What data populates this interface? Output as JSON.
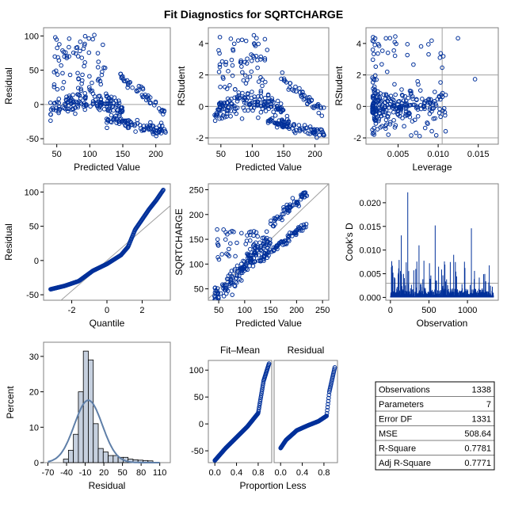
{
  "title": "Fit Diagnostics for SQRTCHARGE",
  "colors": {
    "marker": "#00309a",
    "ref": "#a0a0a0",
    "frame": "#808080",
    "hist_fill": "#c6d0df",
    "curve": "#5f7fa8"
  },
  "chart_data": [
    {
      "type": "scatter",
      "id": "resid_vs_pred",
      "xlabel": "Predicted Value",
      "ylabel": "Residual",
      "xlim": [
        30,
        222
      ],
      "ylim": [
        -58,
        112
      ],
      "xticks": [
        50,
        100,
        150,
        200
      ],
      "yticks": [
        -50,
        0,
        50,
        100
      ],
      "ref_y": 0,
      "clusters": [
        {
          "x": [
            40,
            150
          ],
          "y": [
            -8,
            6
          ],
          "trend": "arch",
          "peak": 6,
          "n": 150
        },
        {
          "x": [
            125,
            215
          ],
          "y": [
            -20,
            -40
          ],
          "trend": "line",
          "n": 90
        },
        {
          "x": [
            45,
            125
          ],
          "y": [
            105,
            20
          ],
          "trend": "scatter",
          "n": 70
        },
        {
          "x": [
            145,
            215
          ],
          "y": [
            42,
            -10
          ],
          "trend": "line",
          "n": 45
        }
      ]
    },
    {
      "type": "scatter",
      "id": "rstudent_vs_pred",
      "xlabel": "Predicted Value",
      "ylabel": "RStudent",
      "xlim": [
        30,
        222
      ],
      "ylim": [
        -2.4,
        5.0
      ],
      "xticks": [
        50,
        100,
        150,
        200
      ],
      "yticks": [
        -2,
        0,
        2,
        4
      ],
      "ref_y": [
        -2,
        0,
        2
      ],
      "clusters": [
        {
          "x": [
            40,
            150
          ],
          "y": [
            -0.3,
            0.3
          ],
          "trend": "arch",
          "peak": 0.3,
          "n": 150
        },
        {
          "x": [
            125,
            215
          ],
          "y": [
            -0.9,
            -1.8
          ],
          "trend": "line",
          "n": 90
        },
        {
          "x": [
            45,
            125
          ],
          "y": [
            4.6,
            0.8
          ],
          "trend": "scatter",
          "n": 70
        },
        {
          "x": [
            145,
            215
          ],
          "y": [
            1.9,
            -0.4
          ],
          "trend": "line",
          "n": 45
        }
      ]
    },
    {
      "type": "scatter",
      "id": "rstudent_vs_leverage",
      "xlabel": "Leverage",
      "ylabel": "RStudent",
      "xlim": [
        0.001,
        0.0175
      ],
      "ylim": [
        -2.4,
        5.0
      ],
      "xticks": [
        0.005,
        0.01,
        0.015
      ],
      "xtick_labels": [
        "0.005",
        "0.010",
        "0.015"
      ],
      "yticks": [
        -2,
        0,
        2,
        4
      ],
      "ref_y": [
        -2,
        0,
        2
      ],
      "ref_x": 0.0105,
      "clusters": [
        {
          "x": [
            0.0018,
            0.011
          ],
          "y": [
            -2.0,
            4.6
          ],
          "n": 300
        }
      ]
    },
    {
      "type": "qq",
      "id": "qq_plot",
      "xlabel": "Quantile",
      "ylabel": "Residual",
      "xlim": [
        -3.6,
        3.6
      ],
      "ylim": [
        -58,
        112
      ],
      "xticks": [
        -2,
        0,
        2
      ],
      "yticks": [
        -50,
        0,
        50,
        100
      ],
      "ref_line": [
        [
          -3.6,
          -80
        ],
        [
          3.6,
          80
        ]
      ],
      "points": [
        [
          -3.2,
          -42
        ],
        [
          -2.4,
          -37
        ],
        [
          -1.6,
          -30
        ],
        [
          -0.8,
          -15
        ],
        [
          0,
          -5
        ],
        [
          0.8,
          8
        ],
        [
          1.2,
          20
        ],
        [
          1.6,
          45
        ],
        [
          2.0,
          60
        ],
        [
          2.4,
          75
        ],
        [
          2.8,
          88
        ],
        [
          3.2,
          103
        ]
      ]
    },
    {
      "type": "scatter",
      "id": "obs_vs_pred",
      "xlabel": "Predicted Value",
      "ylabel": "SQRTCHARGE",
      "xlim": [
        30,
        262
      ],
      "ylim": [
        27,
        262
      ],
      "xticks": [
        50,
        100,
        150,
        200,
        250
      ],
      "yticks": [
        50,
        100,
        150,
        200,
        250
      ],
      "ref_line": [
        [
          30,
          30
        ],
        [
          262,
          262
        ]
      ],
      "clusters": [
        {
          "x": [
            40,
            150
          ],
          "y": [
            30,
            150
          ],
          "trend": "diag",
          "n": 150
        },
        {
          "x": [
            130,
            220
          ],
          "y": [
            110,
            180
          ],
          "trend": "line",
          "n": 80
        },
        {
          "x": [
            45,
            130
          ],
          "y": [
            100,
            170
          ],
          "trend": "scatter",
          "n": 50
        },
        {
          "x": [
            150,
            220
          ],
          "y": [
            180,
            245
          ],
          "trend": "line",
          "n": 60
        }
      ]
    },
    {
      "type": "needle",
      "id": "cooks_d",
      "xlabel": "Observation",
      "ylabel": "Cook's D",
      "xlim": [
        -60,
        1400
      ],
      "ylim": [
        -0.0006,
        0.024
      ],
      "xticks": [
        0,
        500,
        1000
      ],
      "yticks": [
        0.0,
        0.005,
        0.01,
        0.015,
        0.02
      ],
      "ytick_labels": [
        "0.000",
        "0.005",
        "0.010",
        "0.015",
        "0.020"
      ],
      "ref_y": 0.003,
      "n": 1338,
      "peaks": [
        [
          225,
          0.0222
        ],
        [
          580,
          0.0152
        ],
        [
          1050,
          0.0146
        ],
        [
          820,
          0.009
        ],
        [
          140,
          0.0131
        ],
        [
          370,
          0.011
        ]
      ]
    },
    {
      "type": "histogram",
      "id": "resid_hist",
      "xlabel": "Residual",
      "ylabel": "Percent",
      "xlim": [
        -77,
        127
      ],
      "ylim": [
        0,
        34
      ],
      "xticks": [
        -70,
        -40,
        -10,
        20,
        50,
        80,
        110
      ],
      "yticks": [
        0,
        10,
        20,
        30
      ],
      "bins": [
        [
          -45,
          -37,
          1
        ],
        [
          -37,
          -29,
          3.5
        ],
        [
          -29,
          -21,
          8
        ],
        [
          -21,
          -13,
          20
        ],
        [
          -13,
          -5,
          31.5
        ],
        [
          -5,
          3,
          29
        ],
        [
          3,
          11,
          11
        ],
        [
          11,
          19,
          4
        ],
        [
          19,
          27,
          3
        ],
        [
          27,
          35,
          2
        ],
        [
          35,
          43,
          2
        ],
        [
          43,
          51,
          1.5
        ],
        [
          51,
          59,
          1.5
        ],
        [
          59,
          67,
          1
        ],
        [
          67,
          75,
          0.8
        ],
        [
          75,
          83,
          0.7
        ],
        [
          83,
          91,
          0.6
        ],
        [
          91,
          99,
          0.5
        ]
      ],
      "normal_curve": {
        "mean": -5,
        "sd": 22.5,
        "peak": 17.6
      }
    },
    {
      "type": "spread",
      "id": "rf_plot",
      "xlabel": "Proportion Less",
      "ylabel": "",
      "panels": [
        "Fit–Mean",
        "Residual"
      ],
      "xlim": [
        -0.12,
        1.05
      ],
      "ylim": [
        -72,
        118
      ],
      "xticks": [
        0,
        0.4,
        0.8
      ],
      "xtick_labels": [
        "0.0",
        "0.4",
        "0.8"
      ],
      "yticks": [
        -50,
        0,
        50,
        100
      ],
      "fit_mean": [
        [
          0,
          -68
        ],
        [
          0.2,
          -45
        ],
        [
          0.4,
          -25
        ],
        [
          0.6,
          -5
        ],
        [
          0.8,
          20
        ],
        [
          0.85,
          50
        ],
        [
          0.9,
          80
        ],
        [
          1.0,
          112
        ]
      ],
      "residual": [
        [
          0,
          -45
        ],
        [
          0.1,
          -30
        ],
        [
          0.3,
          -12
        ],
        [
          0.5,
          -3
        ],
        [
          0.7,
          5
        ],
        [
          0.85,
          15
        ],
        [
          0.9,
          60
        ],
        [
          1.0,
          105
        ]
      ]
    }
  ],
  "stats": [
    {
      "label": "Observations",
      "value": "1338"
    },
    {
      "label": "Parameters",
      "value": "7"
    },
    {
      "label": "Error DF",
      "value": "1331"
    },
    {
      "label": "MSE",
      "value": "508.64"
    },
    {
      "label": "R-Square",
      "value": "0.7781"
    },
    {
      "label": "Adj R-Square",
      "value": "0.7771"
    }
  ]
}
